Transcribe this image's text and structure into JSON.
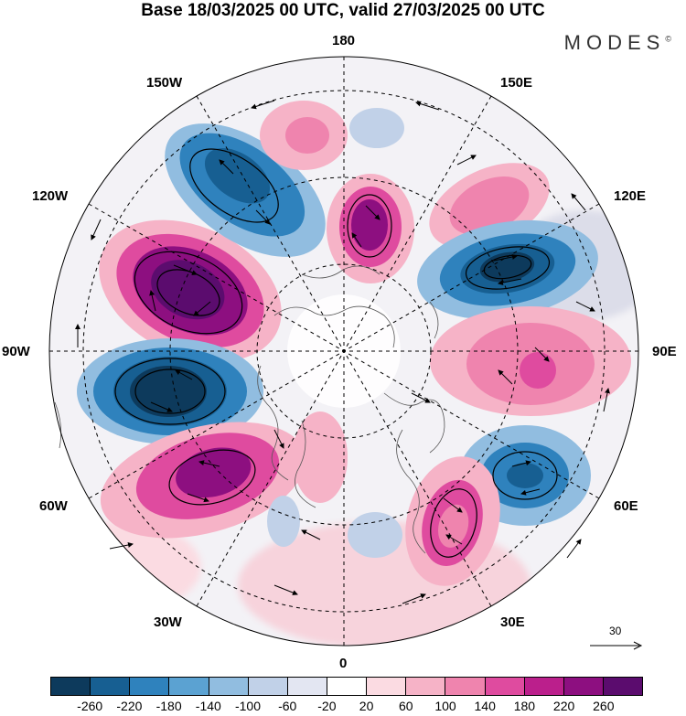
{
  "title": "Base 18/03/2025 00 UTC, valid 27/03/2025 00 UTC",
  "brand": "MODES",
  "brand_mark": "©",
  "longitude_labels": {
    "lon_180": "180",
    "lon_150e": "150E",
    "lon_120e": "120E",
    "lon_90e": "90E",
    "lon_60e": "60E",
    "lon_30e": "30E",
    "lon_0": "0",
    "lon_30w": "30W",
    "lon_60w": "60W",
    "lon_90w": "90W",
    "lon_120w": "120W",
    "lon_150w": "150W"
  },
  "reference_vector": {
    "label": "30"
  },
  "colorbar": {
    "colors": [
      "#0d3a5c",
      "#175f92",
      "#2f82bd",
      "#5ba2d2",
      "#91bde0",
      "#c1d1e8",
      "#e3e6f2",
      "#ffffff",
      "#fbdbe2",
      "#f6b3c7",
      "#ef84ae",
      "#df4b9f",
      "#bb1f8c",
      "#8d0f80",
      "#5b0c6e"
    ],
    "tick_labels": [
      "-260",
      "-220",
      "-180",
      "-140",
      "-100",
      "-60",
      "-20",
      "20",
      "60",
      "100",
      "140",
      "180",
      "220",
      "260"
    ]
  },
  "anomaly_centers": [
    {
      "sign": "positive",
      "level": "strong",
      "direction": "150W-120W"
    },
    {
      "sign": "negative",
      "level": "strong",
      "direction": "90W"
    },
    {
      "sign": "positive",
      "level": "moderate",
      "direction": "60W"
    },
    {
      "sign": "negative",
      "level": "moderate",
      "direction": "150W"
    },
    {
      "sign": "positive",
      "level": "moderate",
      "direction": "180"
    },
    {
      "sign": "negative",
      "level": "strong",
      "direction": "120E"
    },
    {
      "sign": "positive",
      "level": "moderate",
      "direction": "90E"
    },
    {
      "sign": "negative",
      "level": "moderate",
      "direction": "60E"
    },
    {
      "sign": "positive",
      "level": "moderate",
      "direction": "30E"
    }
  ]
}
